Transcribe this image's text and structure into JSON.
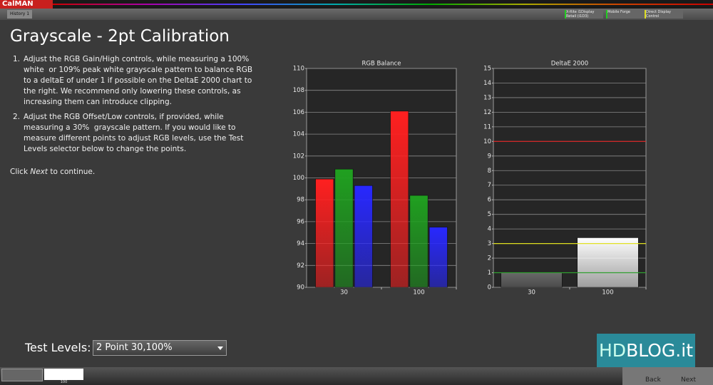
{
  "app": {
    "logo": "CalMAN",
    "tab": "History 1",
    "toolbar": [
      "X-Rite i1Display Retail (i1D3)",
      "Mobile Forge",
      "Direct Display Control"
    ]
  },
  "header": {
    "title": "Grayscale - 2pt Calibration"
  },
  "instructions": [
    {
      "number": "1.",
      "lines": [
        "Adjust the RGB Gain/High controls, while measuring a 100%",
        "white  or 109% peak white grayscale pattern to balance RGB",
        "to a deltaE of under 1 if possible on the DeltaE 2000 chart to",
        "the right. We recommend only lowering these controls, as",
        "increasing them can introduce clipping."
      ]
    },
    {
      "number": "2.",
      "lines": [
        "Adjust the RGB Offset/Low controls, if provided, while",
        "measuring a 30%  grayscale pattern. If you would like to",
        "measure different points to adjust RGB levels, use the Test",
        "Levels selector below to change the points."
      ]
    }
  ],
  "continue": {
    "before": "Click ",
    "emphasis": "Next",
    "after": " to continue."
  },
  "chart_data": [
    {
      "type": "bar",
      "title": "RGB Balance",
      "categories": [
        "30",
        "100"
      ],
      "series": [
        {
          "name": "Red",
          "color": "#ff2020",
          "values": [
            99.9,
            106.1
          ]
        },
        {
          "name": "Green",
          "color": "#20a020",
          "values": [
            100.8,
            98.4
          ]
        },
        {
          "name": "Blue",
          "color": "#2828ff",
          "values": [
            99.3,
            95.5
          ]
        }
      ],
      "ylim": [
        90,
        110
      ],
      "yticks": [
        90,
        92,
        94,
        96,
        98,
        100,
        102,
        104,
        106,
        108,
        110
      ],
      "grid": true
    },
    {
      "type": "bar",
      "title": "DeltaE 2000",
      "categories": [
        "30",
        "100"
      ],
      "values": [
        1.05,
        3.4
      ],
      "colors": [
        "#6a6a6a",
        "#ffffff"
      ],
      "ylim": [
        0,
        15
      ],
      "yticks": [
        0,
        1,
        2,
        3,
        4,
        5,
        6,
        7,
        8,
        9,
        10,
        11,
        12,
        13,
        14,
        15
      ],
      "grid": true,
      "reference_lines": [
        {
          "value": 10,
          "color": "#e02020"
        },
        {
          "value": 3,
          "color": "#e0e020"
        },
        {
          "value": 1,
          "color": "#30a030"
        }
      ]
    }
  ],
  "test_levels": {
    "label": "Test Levels:",
    "selected": "2 Point 30,100%"
  },
  "footer": {
    "thumbnail": "100",
    "back": "Back",
    "next": "Next"
  },
  "watermark": {
    "hd": "HD",
    "blog": "BLOG.it"
  }
}
